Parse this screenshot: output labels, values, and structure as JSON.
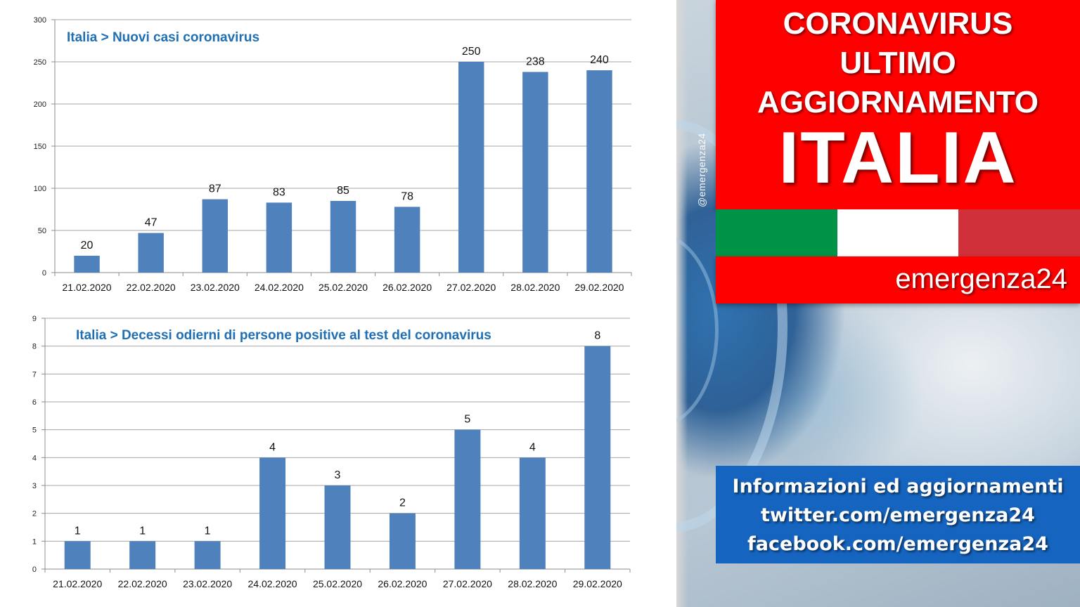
{
  "chart_data": [
    {
      "type": "bar",
      "title": "Italia > Nuovi casi coronavirus",
      "categories": [
        "21.02.2020",
        "22.02.2020",
        "23.02.2020",
        "24.02.2020",
        "25.02.2020",
        "26.02.2020",
        "27.02.2020",
        "28.02.2020",
        "29.02.2020"
      ],
      "values": [
        20,
        47,
        87,
        83,
        85,
        78,
        250,
        238,
        240
      ],
      "ylim": [
        0,
        300
      ],
      "yticks": [
        0,
        50,
        100,
        150,
        200,
        250,
        300
      ],
      "grid": true,
      "legend": "none",
      "bar_color": "#4f81bd",
      "title_color": "#1f6fb5"
    },
    {
      "type": "bar",
      "title": "Italia > Decessi odierni di persone positive al test del coronavirus",
      "categories": [
        "21.02.2020",
        "22.02.2020",
        "23.02.2020",
        "24.02.2020",
        "25.02.2020",
        "26.02.2020",
        "27.02.2020",
        "28.02.2020",
        "29.02.2020"
      ],
      "values": [
        1,
        1,
        1,
        4,
        3,
        2,
        5,
        4,
        8
      ],
      "ylim": [
        0,
        9
      ],
      "yticks": [
        0,
        1,
        2,
        3,
        4,
        5,
        6,
        7,
        8,
        9
      ],
      "grid": true,
      "legend": "none",
      "bar_color": "#4f81bd",
      "title_color": "#1f6fb5"
    }
  ],
  "watermark": "@emergenza24",
  "headline": {
    "line1": "CORONAVIRUS",
    "line2": "ULTIMO",
    "line3": "AGGIORNAMENTO",
    "country": "ITALIA"
  },
  "flag_colors": [
    "#009246",
    "#ffffff",
    "#d0303a"
  ],
  "brand": "emergenza24",
  "info": {
    "line1": "Informazioni ed aggiornamenti",
    "line2": "twitter.com/emergenza24",
    "line3": "facebook.com/emergenza24"
  },
  "colors": {
    "red_banner": "#ff0000",
    "info_blue": "#1565c0"
  }
}
